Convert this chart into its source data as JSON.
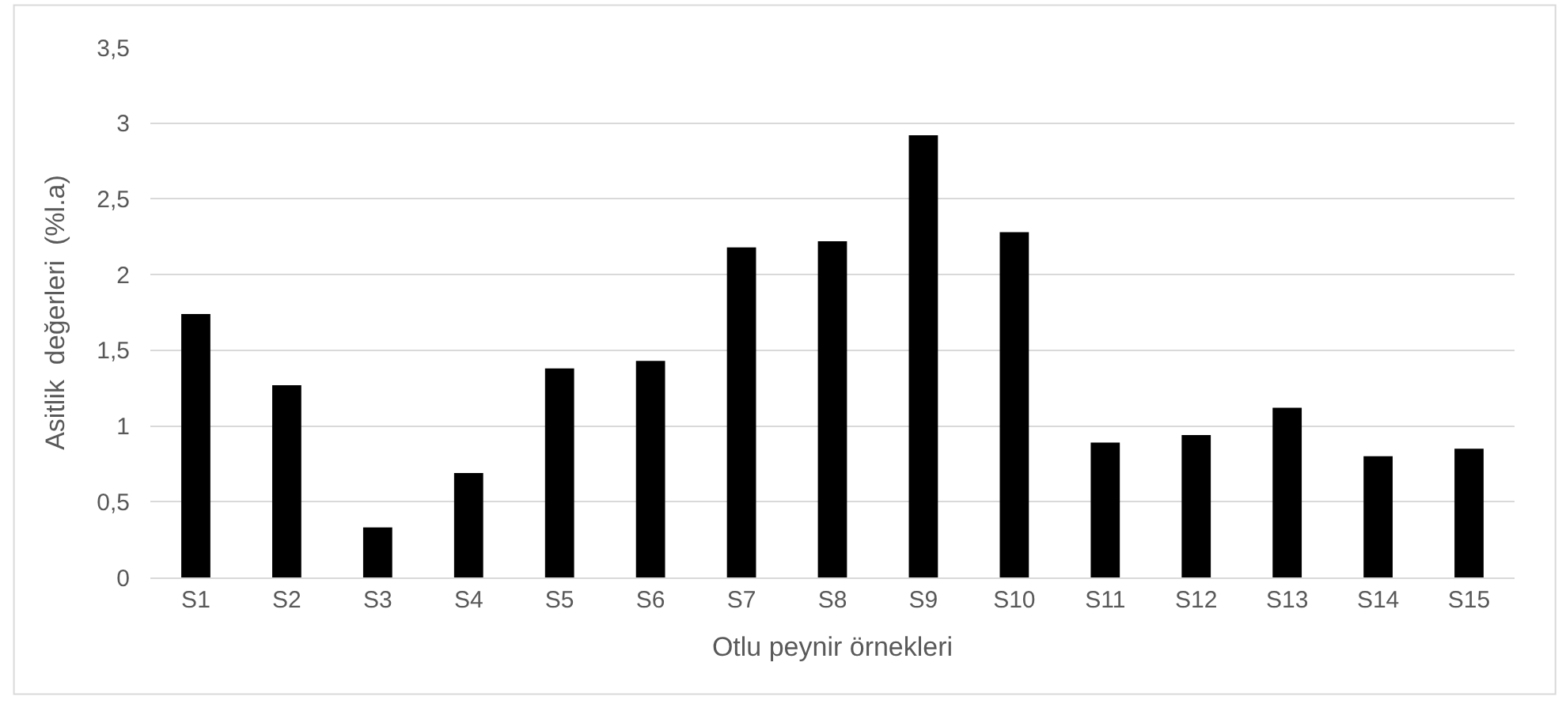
{
  "chart_data": {
    "type": "bar",
    "xlabel": "Otlu peynir örnekleri",
    "ylabel": "Asitlik  değerleri  (%l.a)",
    "categories": [
      "S1",
      "S2",
      "S3",
      "S4",
      "S5",
      "S6",
      "S7",
      "S8",
      "S9",
      "S10",
      "S11",
      "S12",
      "S13",
      "S14",
      "S15"
    ],
    "values": [
      1.74,
      1.27,
      0.33,
      0.69,
      1.38,
      1.43,
      2.18,
      2.22,
      2.92,
      2.28,
      0.89,
      0.94,
      1.12,
      0.8,
      0.85
    ],
    "color": "#000000",
    "ylim": [
      0,
      3.5
    ],
    "yticks": [
      0,
      {
        "value": 0.5,
        "label": "0,5"
      },
      1,
      {
        "value": 1.5,
        "label": "1,5"
      },
      2,
      {
        "value": 2.5,
        "label": "2,5"
      },
      3,
      {
        "value": 3.5,
        "label": "3,5"
      }
    ],
    "grid": "y"
  }
}
